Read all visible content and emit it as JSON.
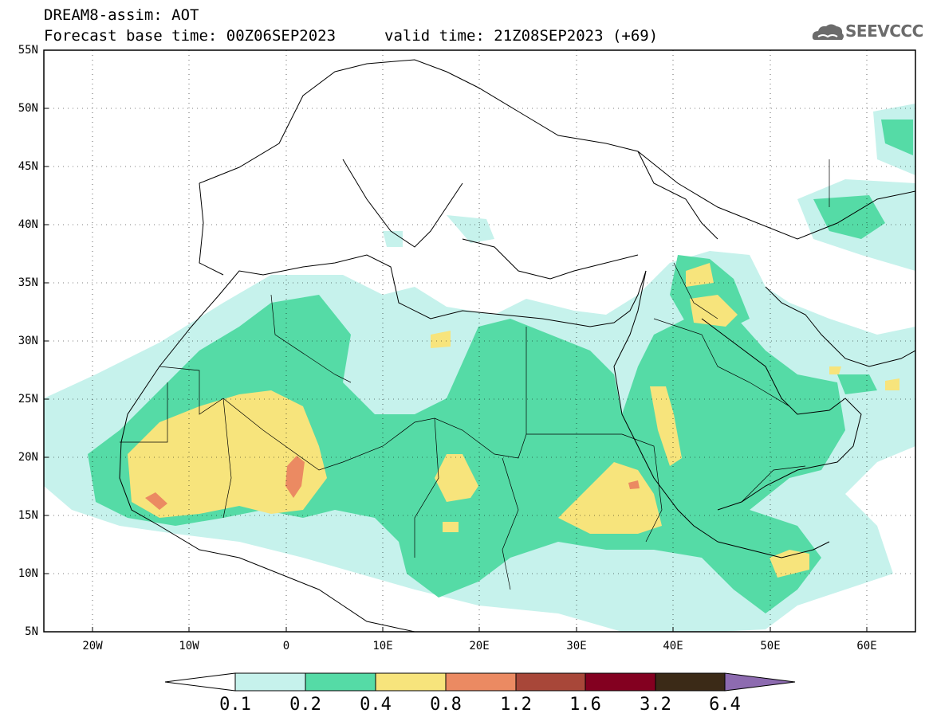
{
  "header": {
    "title": "DREAM8-assim: AOT",
    "base_time": "Forecast base time: 00Z06SEP2023",
    "valid_time": "valid time: 21Z08SEP2023 (+69)",
    "logo_text": "SEEVCCC",
    "logo_icon": "cloud-logo-icon"
  },
  "map": {
    "lat_labels": [
      "55N",
      "50N",
      "45N",
      "40N",
      "35N",
      "30N",
      "25N",
      "20N",
      "15N",
      "10N",
      "5N"
    ],
    "lon_labels": [
      "20W",
      "10W",
      "0",
      "10E",
      "20E",
      "30E",
      "40E",
      "50E",
      "60E"
    ],
    "lat_range": [
      5,
      55
    ],
    "lon_range": [
      -25,
      65
    ],
    "grid": "dotted"
  },
  "colorbar": {
    "labels": [
      "0.1",
      "0.2",
      "0.4",
      "0.8",
      "1.2",
      "1.6",
      "3.2",
      "6.4"
    ],
    "colors": [
      "#ffffff",
      "#c6f2ec",
      "#55dba6",
      "#f7e47c",
      "#eb8a62",
      "#a84739",
      "#830020",
      "#3b2a17",
      "#8d6bb0"
    ]
  }
}
